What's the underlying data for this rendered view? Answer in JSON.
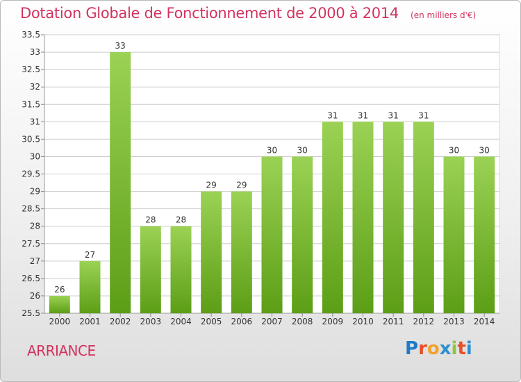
{
  "title": "Dotation Globale de Fonctionnement de 2000 à 2014",
  "unit_note": "(en milliers d'€)",
  "commune": "ARRIANCE",
  "brand": {
    "text": "Proxiti",
    "letter_colors": [
      "#1f7bc8",
      "#e8502a",
      "#f2a12b",
      "#2e8fd0",
      "#8cc63f",
      "#e8502a",
      "#2e8fd0"
    ]
  },
  "colors": {
    "title": "#d2335e",
    "bar_light": "#9bd255",
    "bar_dark": "#5c9e16",
    "grid": "#cccccc",
    "axis_text": "#333333"
  },
  "chart_data": {
    "type": "bar",
    "categories": [
      "2000",
      "2001",
      "2002",
      "2003",
      "2004",
      "2005",
      "2006",
      "2007",
      "2008",
      "2009",
      "2010",
      "2011",
      "2012",
      "2013",
      "2014"
    ],
    "values": [
      26,
      27,
      33,
      28,
      28,
      29,
      29,
      30,
      30,
      31,
      31,
      31,
      31,
      30,
      30
    ],
    "ylim": [
      25.5,
      33.5
    ],
    "yticks": [
      "25.5",
      "26",
      "26.5",
      "27",
      "27.5",
      "28",
      "28.5",
      "29",
      "29.5",
      "30",
      "30.5",
      "31",
      "31.5",
      "32",
      "32.5",
      "33",
      "33.5"
    ],
    "grid": true
  }
}
